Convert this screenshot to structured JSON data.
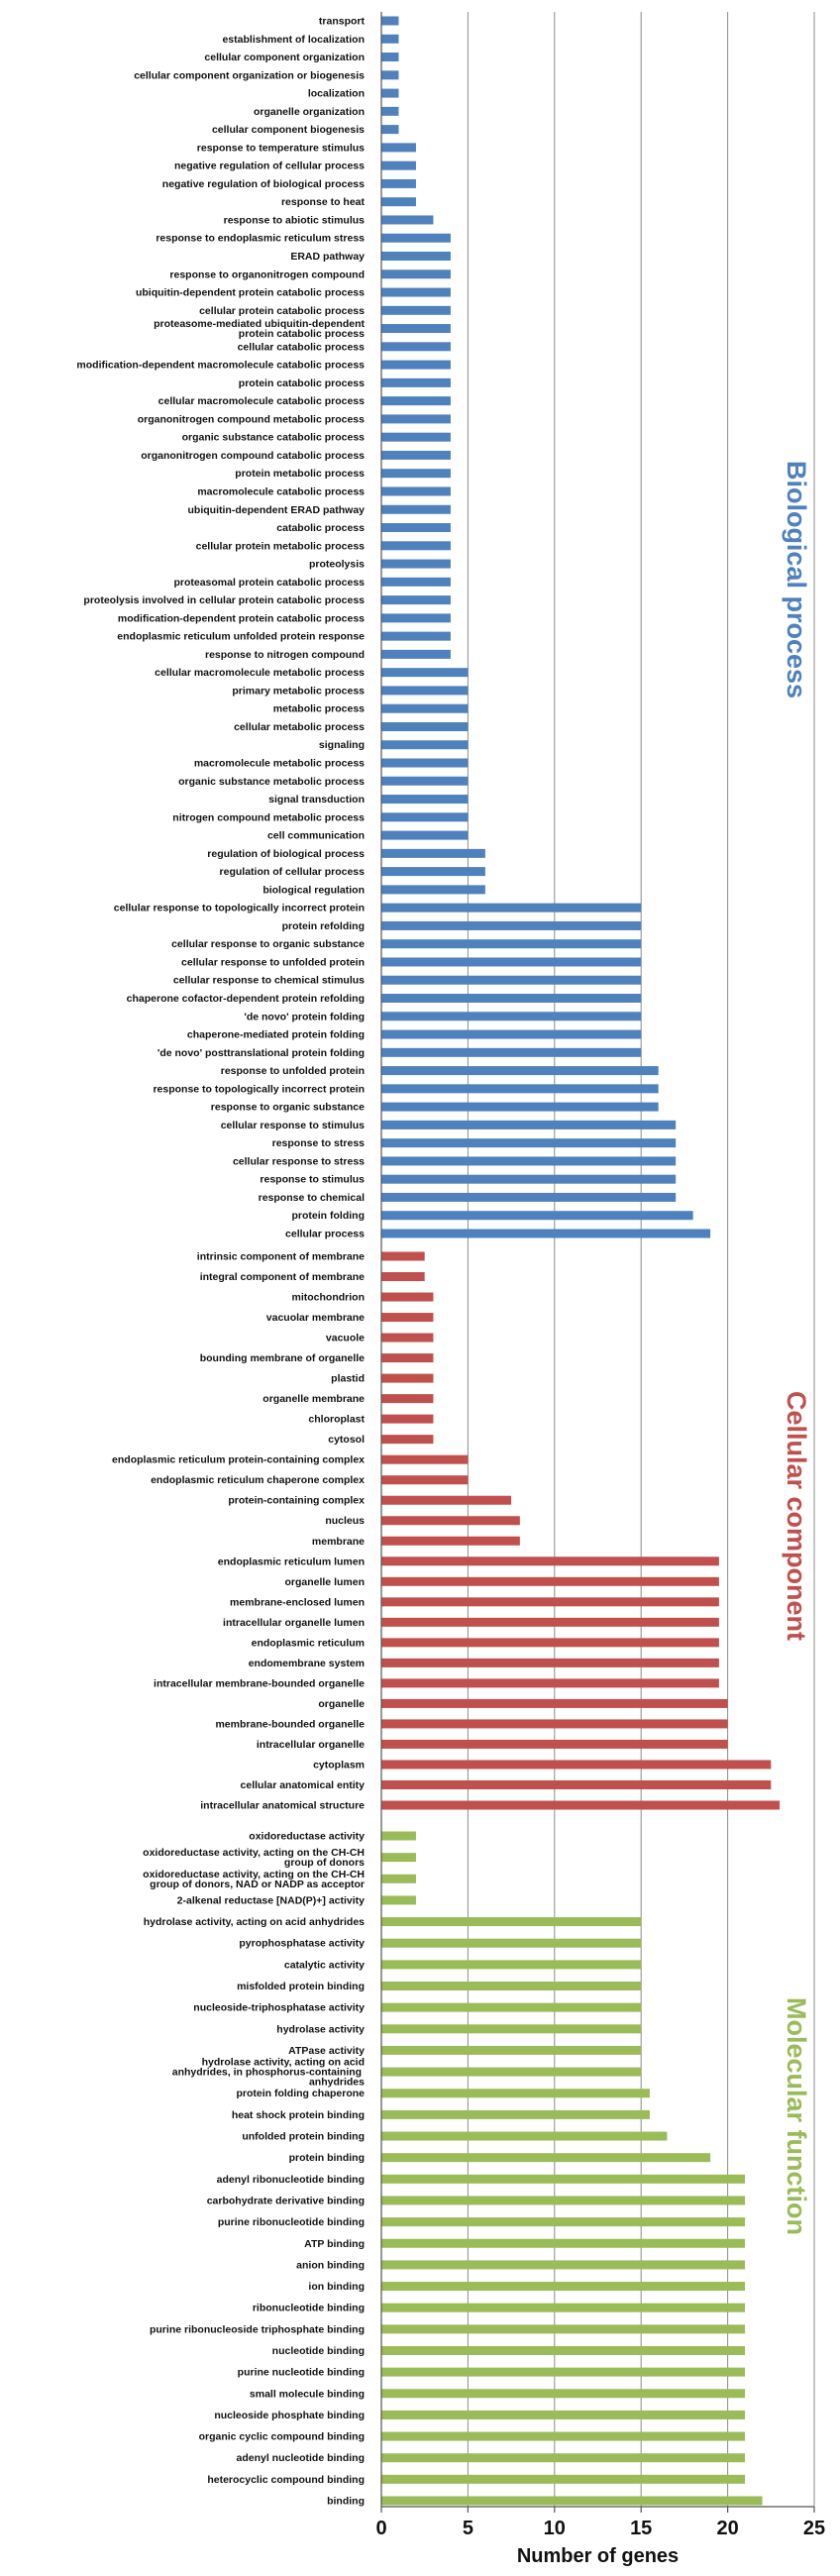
{
  "chart_data": {
    "type": "bar",
    "orientation": "horizontal",
    "xlabel": "Number of genes",
    "xlim": [
      0,
      25
    ],
    "xticks": [
      0,
      5,
      10,
      15,
      20,
      25
    ],
    "grid": true,
    "colors": {
      "Biological process": "#4f81bd",
      "Cellular component": "#c0504d",
      "Molecular function": "#9bbb59",
      "grid": "#8c8c8c"
    },
    "groups": [
      {
        "name": "Biological process",
        "categories": [
          "transport",
          "establishment of localization",
          "cellular component organization",
          "cellular component organization  or biogenesis",
          "localization",
          "organelle organization",
          "cellular component biogenesis",
          "response to temperature stimulus",
          "negative regulation of cellular process",
          "negative regulation of biological process",
          "response to heat",
          "response to abiotic stimulus",
          "response to endoplasmic reticulum stress",
          "ERAD pathway",
          "response to organonitrogen compound",
          "ubiquitin-dependent protein catabolic process",
          "cellular protein catabolic process",
          "proteasome-mediated ubiquitin-dependent protein catabolic process",
          "cellular catabolic process",
          "modification-dependent macromolecule catabolic process",
          "protein catabolic process",
          "cellular macromolecule catabolic process",
          "organonitrogen compound metabolic process",
          "organic substance catabolic process",
          "organonitrogen compound catabolic process",
          "protein metabolic process",
          "macromolecule catabolic process",
          "ubiquitin-dependent ERAD pathway",
          "catabolic process",
          "cellular protein metabolic process",
          "proteolysis",
          "proteasomal protein catabolic process",
          "proteolysis involved in cellular protein catabolic process",
          "modification-dependent protein catabolic process",
          "endoplasmic reticulum unfolded protein response",
          "response to nitrogen compound",
          "cellular macromolecule metabolic process",
          "primary metabolic process",
          "metabolic process",
          "cellular metabolic process",
          "signaling",
          "macromolecule metabolic process",
          "organic substance metabolic process",
          "signal transduction",
          "nitrogen compound metabolic process",
          "cell communication",
          "regulation of biological  process",
          "regulation of cellular process",
          "biological regulation",
          "cellular response to topologically incorrect protein",
          "protein refolding",
          "cellular response to organic substance",
          "cellular response to unfolded protein",
          "cellular response to chemical stimulus",
          "chaperone cofactor-dependent protein refolding",
          "'de novo' protein folding",
          "chaperone-mediated protein folding",
          "'de novo' posttranslational protein folding",
          "response to unfolded protein",
          "response to topologically incorrect protein",
          "response to organic substance",
          "cellular response to stimulus",
          "response to stress",
          "cellular response to stress",
          "response to stimulus",
          "response to chemical",
          "protein folding",
          "cellular process"
        ],
        "values": [
          1,
          1,
          1,
          1,
          1,
          1,
          1,
          2,
          2,
          2,
          2,
          3,
          4,
          4,
          4,
          4,
          4,
          4,
          4,
          4,
          4,
          4,
          4,
          4,
          4,
          4,
          4,
          4,
          4,
          4,
          4,
          4,
          4,
          4,
          4,
          4,
          5,
          5,
          5,
          5,
          5,
          5,
          5,
          5,
          5,
          5,
          6,
          6,
          6,
          15,
          15,
          15,
          15,
          15,
          15,
          15,
          15,
          15,
          16,
          16,
          16,
          17,
          17,
          17,
          17,
          17,
          18,
          19
        ]
      },
      {
        "name": "Cellular component",
        "categories": [
          "intrinsic component of membrane",
          "integral component of membrane",
          "mitochondrion",
          "vacuolar membrane",
          "vacuole",
          "bounding membrane of organelle",
          "plastid",
          "organelle membrane",
          "chloroplast",
          "cytosol",
          "endoplasmic reticulum protein-containing complex",
          "endoplasmic reticulum chaperone complex",
          "protein-containing complex",
          "nucleus",
          "membrane",
          "endoplasmic reticulum lumen",
          "organelle lumen",
          "membrane-enclosed lumen",
          "intracellular organelle lumen",
          "endoplasmic reticulum",
          "endomembrane system",
          "intracellular membrane-bounded organelle",
          "organelle",
          "membrane-bounded organelle",
          "intracellular organelle",
          "cytoplasm",
          "cellular anatomical entity",
          "intracellular anatomical structure"
        ],
        "values": [
          2.5,
          2.5,
          3,
          3,
          3,
          3,
          3,
          3,
          3,
          3,
          5,
          5,
          7.5,
          8,
          8,
          19.5,
          19.5,
          19.5,
          19.5,
          19.5,
          19.5,
          19.5,
          20,
          20,
          20,
          22.5,
          22.5,
          23
        ]
      },
      {
        "name": "Molecular function",
        "categories": [
          "oxidoreductase activity",
          "oxidoreductase activity, acting on the CH-CH group of donors",
          "oxidoreductase activity, acting on the CH-CH group of donors, NAD or NADP as acceptor",
          "2-alkenal reductase [NAD(P)+] activity",
          "hydrolase activity, acting on acid anhydrides",
          "pyrophosphatase activity",
          "catalytic activity",
          "misfolded protein binding",
          "nucleoside-triphosphatase activity",
          "hydrolase activity",
          "ATPase activity",
          "hydrolase activity, acting on acid anhydrides, in phosphorus-containing  anhydrides",
          "protein folding chaperone",
          "heat shock protein binding",
          "unfolded protein binding",
          "protein binding",
          "adenyl ribonucleotide binding",
          "carbohydrate derivative binding",
          "purine ribonucleotide binding",
          "ATP binding",
          "anion binding",
          "ion binding",
          "ribonucleotide binding",
          "purine ribonucleoside triphosphate binding",
          "nucleotide binding",
          "purine nucleotide binding",
          "small molecule binding",
          "nucleoside phosphate binding",
          "organic cyclic compound binding",
          "adenyl nucleotide binding",
          "heterocyclic compound binding",
          "binding"
        ],
        "values": [
          2,
          2,
          2,
          2,
          15,
          15,
          15,
          15,
          15,
          15,
          15,
          15,
          15.5,
          15.5,
          16.5,
          19,
          21,
          21,
          21,
          21,
          21,
          21,
          21,
          21,
          21,
          21,
          21,
          21,
          21,
          21,
          21,
          22
        ]
      }
    ]
  }
}
